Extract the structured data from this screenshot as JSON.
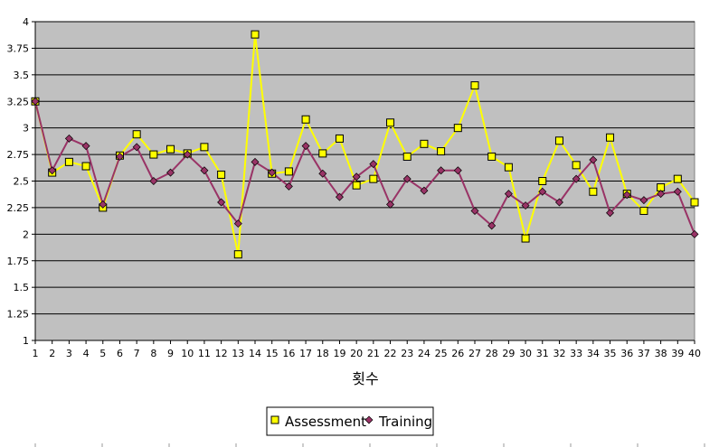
{
  "chart_data": {
    "type": "line",
    "title": "",
    "xlabel": "횟수",
    "ylabel": "",
    "x": [
      1,
      2,
      3,
      4,
      5,
      6,
      7,
      8,
      9,
      10,
      11,
      12,
      13,
      14,
      15,
      16,
      17,
      18,
      19,
      20,
      21,
      22,
      23,
      24,
      25,
      26,
      27,
      28,
      29,
      30,
      31,
      32,
      33,
      34,
      35,
      36,
      37,
      38,
      39,
      40
    ],
    "ylim": [
      1,
      4
    ],
    "yticks": [
      "1",
      "1.25",
      "1.5",
      "1.75",
      "2",
      "2.25",
      "2.5",
      "2.75",
      "3",
      "3.25",
      "3.5",
      "3.75",
      "4"
    ],
    "grid": true,
    "legend_position": "bottom",
    "plot_background": "#c0c0c0",
    "series": [
      {
        "name": "Assessment",
        "color": "#ffff00",
        "marker": "square",
        "marker_fill": "#ffff00",
        "marker_edge": "#000000",
        "values": [
          3.25,
          2.58,
          2.68,
          2.64,
          2.25,
          2.74,
          2.94,
          2.75,
          2.8,
          2.76,
          2.82,
          2.56,
          1.81,
          3.88,
          2.57,
          2.59,
          3.08,
          2.76,
          2.9,
          2.46,
          2.52,
          3.05,
          2.73,
          2.85,
          2.78,
          3.0,
          3.4,
          2.73,
          2.63,
          1.96,
          2.5,
          2.88,
          2.65,
          2.4,
          2.91,
          2.38,
          2.22,
          2.44,
          2.52,
          2.3
        ]
      },
      {
        "name": "Training",
        "color": "#993366",
        "marker": "diamond",
        "marker_fill": "#993366",
        "marker_edge": "#000000",
        "values": [
          3.25,
          2.6,
          2.9,
          2.83,
          2.28,
          2.73,
          2.82,
          2.5,
          2.58,
          2.75,
          2.6,
          2.3,
          2.1,
          2.68,
          2.58,
          2.45,
          2.83,
          2.57,
          2.35,
          2.54,
          2.66,
          2.28,
          2.52,
          2.41,
          2.6,
          2.6,
          2.22,
          2.08,
          2.38,
          2.27,
          2.4,
          2.3,
          2.52,
          2.7,
          2.2,
          2.37,
          2.32,
          2.38,
          2.4,
          2.0
        ]
      }
    ]
  }
}
